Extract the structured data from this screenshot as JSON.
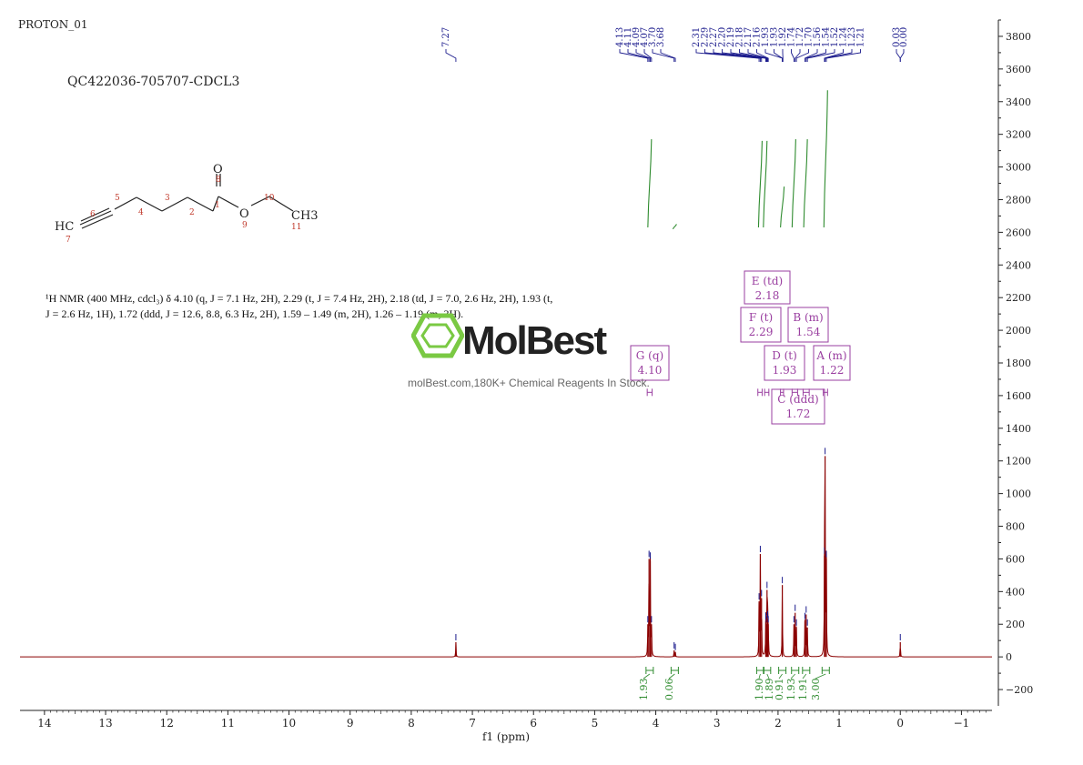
{
  "header": {
    "experiment": "PROTON_01"
  },
  "sample": {
    "label": "QC422036-705707-CDCL3"
  },
  "molecule": {
    "atoms": [
      {
        "label": "O",
        "num": "8"
      },
      {
        "label": "O",
        "num": "9"
      },
      {
        "label": "HC",
        "num": "7"
      },
      {
        "label": "CH3",
        "num": "11"
      }
    ],
    "numbers": [
      "1",
      "2",
      "3",
      "4",
      "5",
      "6",
      "10"
    ]
  },
  "nmr_description": "¹H NMR (400 MHz, cdcl₃) δ 4.10 (q, J = 7.1 Hz, 2H), 2.29 (t, J = 7.4 Hz, 2H), 2.18 (td, J = 7.0, 2.6 Hz, 2H), 1.93 (t, J = 2.6 Hz, 1H), 1.72 (ddd, J = 12.6, 8.8, 6.3 Hz, 2H), 1.59 – 1.49 (m, 2H), 1.26 – 1.19 (m, 3H).",
  "watermark": {
    "brand": "MolBest",
    "tagline": "molBest.com,180K+ Chemical Reagents In Stock."
  },
  "colors": {
    "spectrum": "#8b0000",
    "integral": "#2e8b2e",
    "peak_label": "#1a1a8c",
    "multiplet": "#9a3fa0"
  },
  "chart_data": {
    "type": "line",
    "xlabel": "f1 (ppm)",
    "xlim": [
      14.4,
      -1.5
    ],
    "ylim": [
      -300,
      3900
    ],
    "x_ticks": [
      "14",
      "13",
      "12",
      "11",
      "10",
      "9",
      "8",
      "7",
      "6",
      "5",
      "4",
      "3",
      "2",
      "1",
      "0",
      "−1"
    ],
    "y_ticks": [
      "−200",
      "0",
      "200",
      "400",
      "600",
      "800",
      "1000",
      "1200",
      "1400",
      "1600",
      "1800",
      "2000",
      "2200",
      "2400",
      "2600",
      "2800",
      "3000",
      "3200",
      "3400",
      "3600",
      "3800"
    ],
    "peaks": [
      {
        "ppm": 7.27,
        "height": 90
      },
      {
        "ppm": 4.13,
        "height": 200
      },
      {
        "ppm": 4.11,
        "height": 600
      },
      {
        "ppm": 4.09,
        "height": 590
      },
      {
        "ppm": 4.07,
        "height": 200
      },
      {
        "ppm": 3.7,
        "height": 40
      },
      {
        "ppm": 3.68,
        "height": 30
      },
      {
        "ppm": 2.31,
        "height": 340
      },
      {
        "ppm": 2.29,
        "height": 630
      },
      {
        "ppm": 2.27,
        "height": 360
      },
      {
        "ppm": 2.2,
        "height": 220
      },
      {
        "ppm": 2.19,
        "height": 200
      },
      {
        "ppm": 2.18,
        "height": 410
      },
      {
        "ppm": 2.17,
        "height": 230
      },
      {
        "ppm": 2.16,
        "height": 200
      },
      {
        "ppm": 1.93,
        "height": 440
      },
      {
        "ppm": 1.74,
        "height": 200
      },
      {
        "ppm": 1.72,
        "height": 270
      },
      {
        "ppm": 1.7,
        "height": 180
      },
      {
        "ppm": 1.56,
        "height": 220
      },
      {
        "ppm": 1.54,
        "height": 260
      },
      {
        "ppm": 1.52,
        "height": 180
      },
      {
        "ppm": 1.24,
        "height": 620
      },
      {
        "ppm": 1.23,
        "height": 1230
      },
      {
        "ppm": 1.21,
        "height": 600
      },
      {
        "ppm": 0.0,
        "height": 90
      }
    ],
    "peak_labels": {
      "group1": [
        "7.27"
      ],
      "group2": [
        "4.13",
        "4.11",
        "4.09",
        "4.07",
        "3.70",
        "3.68"
      ],
      "group3": [
        "2.31",
        "2.29",
        "2.27",
        "2.20",
        "2.19",
        "2.18",
        "2.17",
        "2.16",
        "1.93",
        "1.93",
        "1.92",
        "1.74",
        "1.72",
        "1.70",
        "1.56",
        "1.54",
        "1.52",
        "1.24",
        "1.23",
        "1.21"
      ],
      "group4": [
        "0.03",
        "0.00"
      ]
    },
    "integrals": [
      {
        "ppm": 4.1,
        "value": "1.93"
      },
      {
        "ppm": 3.69,
        "value": "0.06"
      },
      {
        "ppm": 2.29,
        "value": "1.90"
      },
      {
        "ppm": 2.18,
        "value": "1.89"
      },
      {
        "ppm": 1.93,
        "value": "0.91"
      },
      {
        "ppm": 1.72,
        "value": "1.93"
      },
      {
        "ppm": 1.54,
        "value": "1.91"
      },
      {
        "ppm": 1.22,
        "value": "3.00"
      }
    ],
    "multiplets": [
      {
        "id": "E",
        "type": "(td)",
        "shift": "2.18"
      },
      {
        "id": "F",
        "type": "(t)",
        "shift": "2.29"
      },
      {
        "id": "B",
        "type": "(m)",
        "shift": "1.54"
      },
      {
        "id": "G",
        "type": "(q)",
        "shift": "4.10"
      },
      {
        "id": "D",
        "type": "(t)",
        "shift": "1.93"
      },
      {
        "id": "A",
        "type": "(m)",
        "shift": "1.22"
      },
      {
        "id": "C",
        "type": "(ddd)",
        "shift": "1.72"
      }
    ]
  }
}
